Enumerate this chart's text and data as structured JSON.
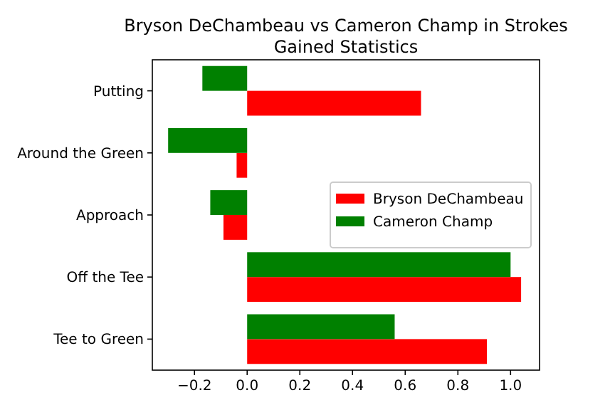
{
  "chart_data": {
    "type": "bar",
    "orientation": "horizontal",
    "title": "Bryson DeChambeau vs Cameron Champ in Strokes Gained Statistics",
    "categories": [
      "Putting",
      "Around the Green",
      "Approach",
      "Off the Tee",
      "Tee to Green"
    ],
    "series": [
      {
        "name": "Bryson DeChambeau",
        "color": "#ff0000",
        "values": [
          0.66,
          -0.04,
          -0.09,
          1.04,
          0.91
        ]
      },
      {
        "name": "Cameron Champ",
        "color": "#008000",
        "values": [
          -0.17,
          -0.3,
          -0.14,
          1.0,
          0.56
        ]
      }
    ],
    "xlim": [
      -0.36,
      1.11
    ],
    "xticks": [
      {
        "value": -0.2,
        "label": "−0.2"
      },
      {
        "value": 0,
        "label": "0.0"
      },
      {
        "value": 0.2,
        "label": "0.2"
      },
      {
        "value": 0.4,
        "label": "0.4"
      },
      {
        "value": 0.6,
        "label": "0.6"
      },
      {
        "value": 0.8,
        "label": "0.8"
      },
      {
        "value": 1,
        "label": "1.0"
      }
    ],
    "legend": "center right",
    "grid": false
  }
}
